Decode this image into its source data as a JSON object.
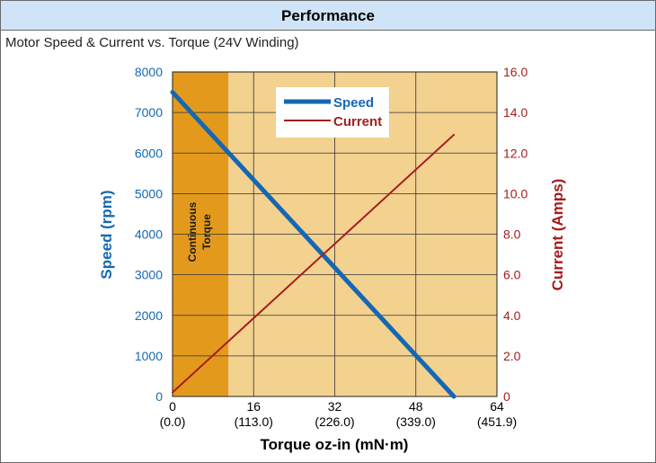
{
  "header": {
    "title": "Performance"
  },
  "subtitle": "Motor Speed & Current vs. Torque (24V Winding)",
  "colors": {
    "plot_bg": "#f3d18f",
    "continuous_region": "#e39a1c",
    "speed": "#1468b3",
    "current": "#a51d1d",
    "header_bg": "#cfe4f6"
  },
  "chart_data": {
    "type": "line",
    "x_label": "Torque oz-in (mN·m)",
    "x_range": [
      0,
      64
    ],
    "x_ticks": [
      {
        "value": 0,
        "label": "0",
        "sub": "(0.0)"
      },
      {
        "value": 16,
        "label": "16",
        "sub": "(113.0)"
      },
      {
        "value": 32,
        "label": "32",
        "sub": "(226.0)"
      },
      {
        "value": 48,
        "label": "48",
        "sub": "(339.0)"
      },
      {
        "value": 64,
        "label": "64",
        "sub": "(451.9)"
      }
    ],
    "y_left": {
      "label": "Speed (rpm)",
      "range": [
        0,
        8000
      ],
      "ticks": [
        "0",
        "1000",
        "2000",
        "3000",
        "4000",
        "5000",
        "6000",
        "7000",
        "8000"
      ]
    },
    "y_right": {
      "label": "Current (Amps)",
      "range": [
        0,
        16
      ],
      "ticks": [
        "0",
        "2.0",
        "4.0",
        "6.0",
        "8.0",
        "10.0",
        "12.0",
        "14.0",
        "16.0"
      ]
    },
    "grid": true,
    "continuous_region": {
      "x_from": 0,
      "x_to": 11,
      "label_line1": "Continuous",
      "label_line2": "Torque"
    },
    "legend_position": "top-center",
    "series": [
      {
        "name": "Speed",
        "axis": "left",
        "x": [
          0,
          55.5
        ],
        "y": [
          7500,
          0
        ]
      },
      {
        "name": "Current",
        "axis": "right",
        "x": [
          0,
          55.5
        ],
        "y": [
          0.2,
          12.9
        ]
      }
    ]
  }
}
